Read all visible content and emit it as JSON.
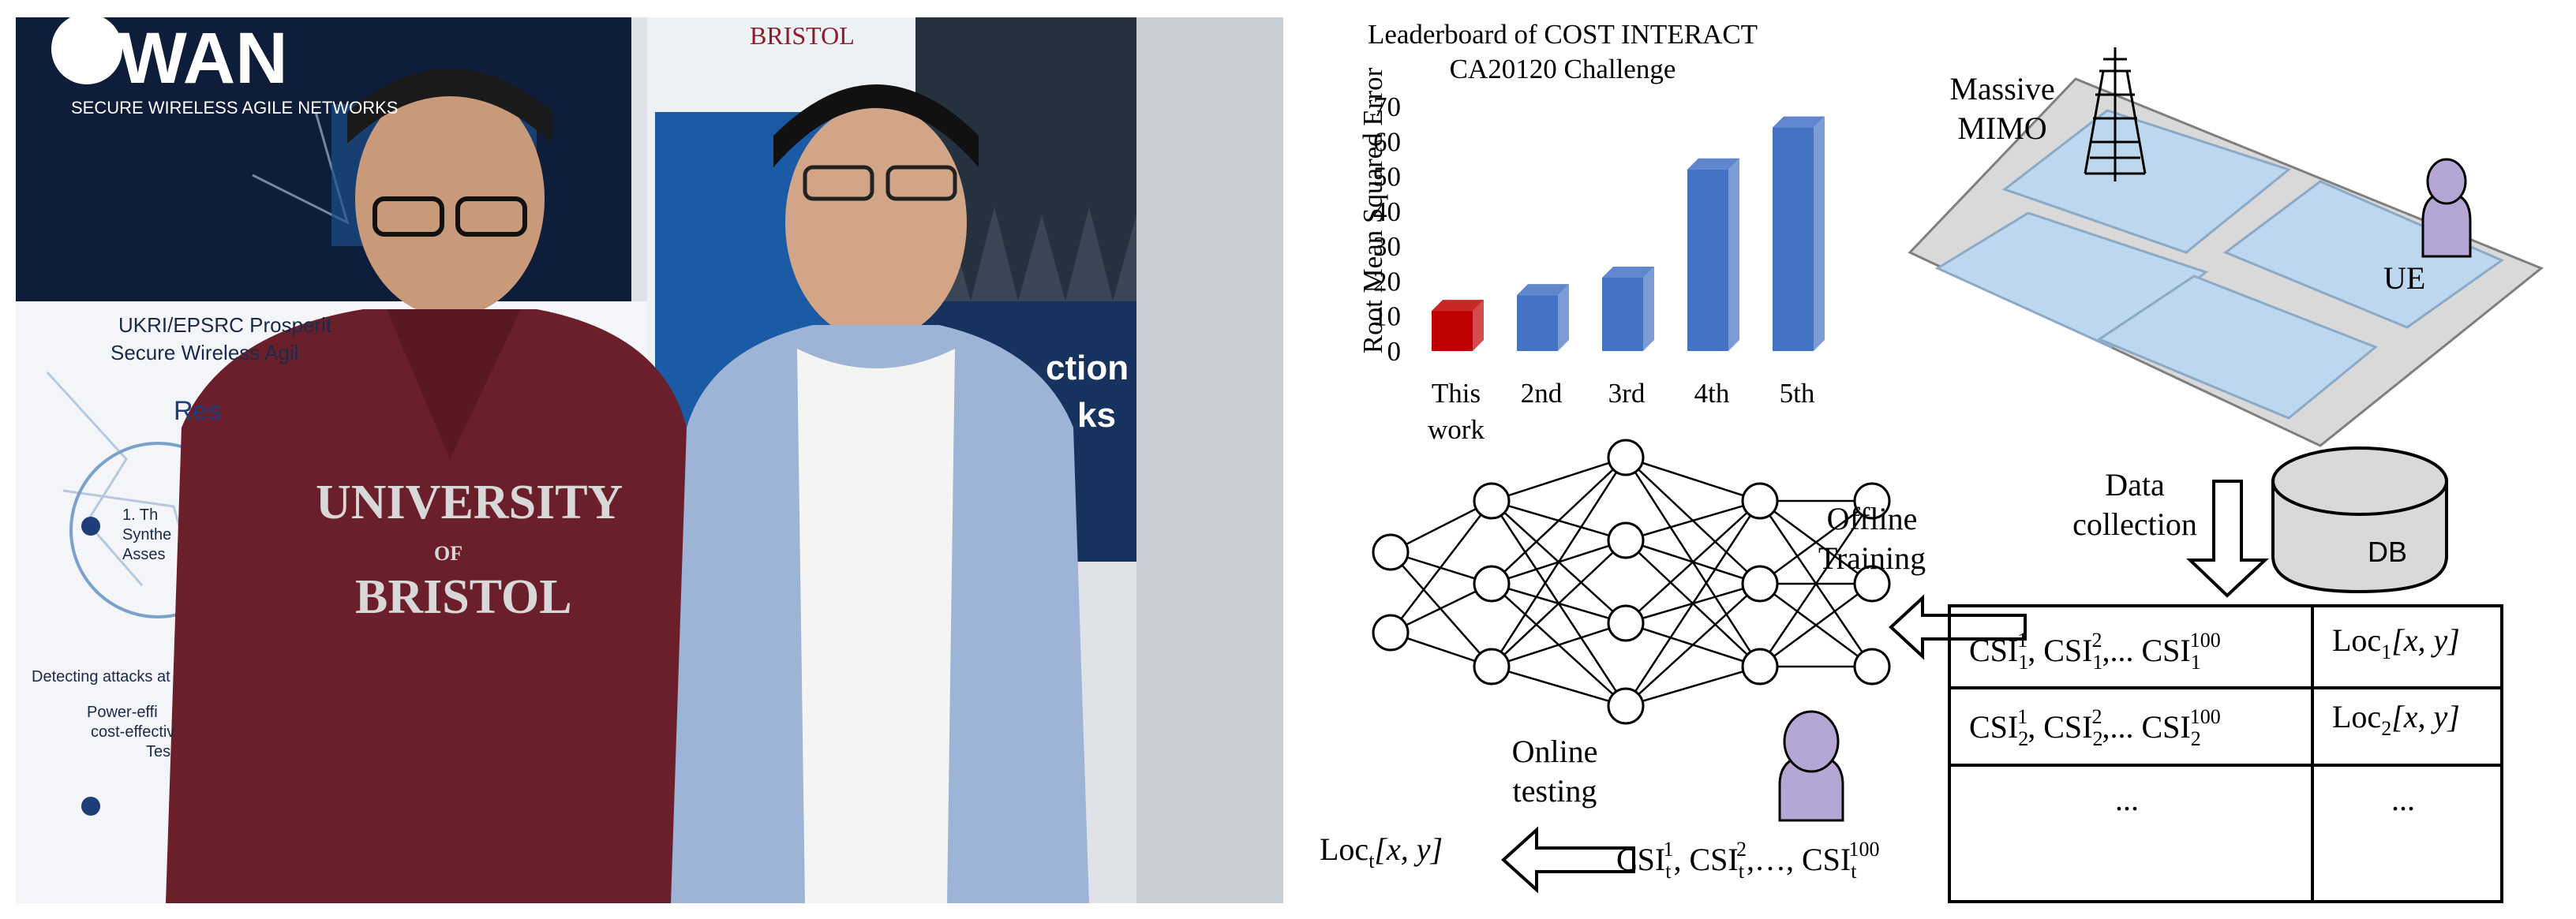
{
  "photo": {
    "banner_logo": "WAN",
    "banner_tagline": "SECURE WIRELESS AGILE NETWORKS",
    "banner_line_1": "UKRI/EPSRC Prosperit",
    "banner_line_2": "Secure Wireless Agil",
    "banner_word": "Res",
    "banner_item_1": "1. Th",
    "banner_item_1b": "Synthe",
    "banner_item_1c": "Asses",
    "banner_item_2": "Detecting attacks at",
    "banner_item_3": "Power-effi",
    "banner_item_3b": "cost-effectiv",
    "banner_item_3c": "Tes",
    "bristol_header": "BRISTOL",
    "hoodie_line_1": "UNIVERSITY",
    "hoodie_line_2": "OF",
    "hoodie_line_3": "BRISTOL",
    "poster_text_1": "ction",
    "poster_text_2": "ks"
  },
  "chart_data": {
    "type": "bar",
    "title_line_1": "Leaderboard of COST INTERACT",
    "title_line_2": "CA20120 Challenge",
    "ylabel": "Root Mean Squared Error",
    "xlabel": "",
    "categories": [
      "This work",
      "2nd",
      "3rd",
      "4th",
      "5th"
    ],
    "category_lines": [
      [
        "This",
        "work"
      ],
      [
        "2nd"
      ],
      [
        "3rd"
      ],
      [
        "4th"
      ],
      [
        "5th"
      ]
    ],
    "values": [
      11.5,
      16,
      21,
      52,
      64
    ],
    "bar_colors": [
      "#c00000",
      "#4472c4",
      "#4472c4",
      "#4472c4",
      "#4472c4"
    ],
    "ylim": [
      0,
      70
    ],
    "yticks": [
      "0",
      "10",
      "20",
      "30",
      "40",
      "50",
      "60",
      "70"
    ],
    "grid": false,
    "legend": "none"
  },
  "diagram": {
    "massive_line_1": "Massive",
    "massive_line_2": "MIMO",
    "ue_label": "UE",
    "data_line_1": "Data",
    "data_line_2": "collection",
    "db_label": "DB",
    "offline_line_1": "Offline",
    "offline_line_2": "Training",
    "online_line_1": "Online",
    "online_line_2": "testing",
    "table": {
      "r1c1": {
        "base": "CSI",
        "sub1": "1",
        "sup1": "1",
        "sub2": "1",
        "sup2": "2",
        "dots": ",... ",
        "sub3": "1",
        "sup3": "100"
      },
      "r1c2": {
        "base": "Loc",
        "sub": "1",
        "coords": "[x, y]"
      },
      "r2c1": {
        "base": "CSI",
        "sub1": "2",
        "sup1": "1",
        "sub2": "2",
        "sup2": "2",
        "dots": ",... ",
        "sub3": "2",
        "sup3": "100"
      },
      "r2c2": {
        "base": "Loc",
        "sub": "2",
        "coords": "[x, y]"
      },
      "r3c1": "...",
      "r3c2": "..."
    },
    "test_csi": {
      "base": "CSI",
      "sub": "t",
      "sup1": "1",
      "sup2": "2",
      "sup3": "100",
      "sep": ",…, "
    },
    "output_loc": {
      "base": "Loc",
      "sub": "t",
      "coords": "[x, y]"
    }
  },
  "colors": {
    "bar_red": "#c00000",
    "bar_blue": "#4472c4",
    "floor_gray": "#d9d9d9",
    "tile_blue": "#bdd7ee",
    "person_purple": "#b4a7d6",
    "hoodie": "#6b1f2a",
    "shirt_blue": "#9db4d6"
  }
}
